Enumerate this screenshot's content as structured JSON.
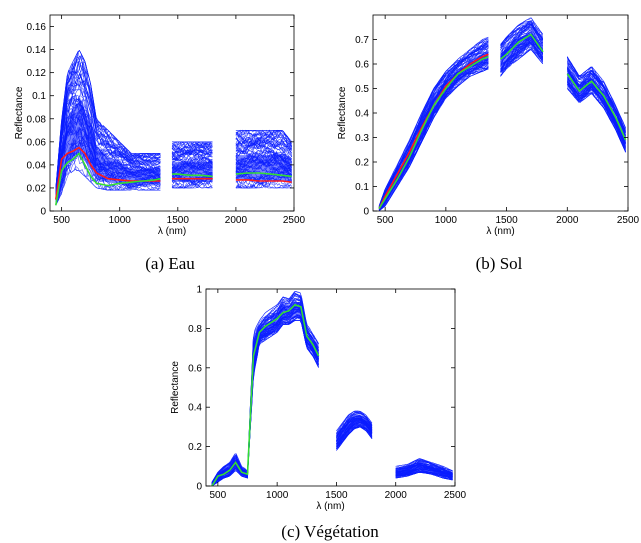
{
  "chart_data": [
    {
      "type": "line",
      "panel": "a",
      "caption": "(a) Eau",
      "xlabel": "λ (nm)",
      "ylabel": "Reflectance",
      "xlim": [
        400,
        2500
      ],
      "ylim": [
        0,
        0.17
      ],
      "xticks": [
        500,
        1000,
        1500,
        2000,
        2500
      ],
      "yticks": [
        0,
        0.02,
        0.04,
        0.06,
        0.08,
        0.1,
        0.12,
        0.14,
        0.16
      ],
      "ytick_labels": [
        "0",
        "0.02",
        "0.04",
        "0.06",
        "0.08",
        "0.1",
        "0.12",
        "0.14",
        "0.16"
      ],
      "grid": false,
      "colors": {
        "spectra": "#0a1cff",
        "red": "#ff1a1a",
        "green": "#33dd33",
        "cyan": "#22ddee"
      },
      "segments": [
        [
          450,
          1350
        ],
        [
          1450,
          1800
        ],
        [
          2000,
          2480
        ]
      ],
      "series": [
        {
          "role": "spectra-band",
          "color": "#0a1cff",
          "x": [
            450,
            500,
            550,
            600,
            650,
            700,
            750,
            800,
            900,
            1000,
            1100,
            1200,
            1300,
            1350,
            1450,
            1500,
            1600,
            1700,
            1800,
            2000,
            2100,
            2200,
            2300,
            2400,
            2480
          ],
          "low": [
            0.005,
            0.015,
            0.03,
            0.035,
            0.035,
            0.03,
            0.025,
            0.02,
            0.018,
            0.018,
            0.018,
            0.018,
            0.018,
            0.018,
            0.02,
            0.02,
            0.02,
            0.02,
            0.02,
            0.02,
            0.02,
            0.02,
            0.02,
            0.02,
            0.02
          ],
          "high": [
            0.02,
            0.08,
            0.12,
            0.13,
            0.14,
            0.13,
            0.11,
            0.08,
            0.07,
            0.06,
            0.05,
            0.05,
            0.05,
            0.05,
            0.06,
            0.06,
            0.06,
            0.06,
            0.06,
            0.07,
            0.07,
            0.07,
            0.07,
            0.07,
            0.06
          ]
        },
        {
          "role": "mean-red",
          "color": "#ff1a1a",
          "x": [
            450,
            500,
            550,
            600,
            650,
            700,
            750,
            800,
            900,
            1000,
            1100,
            1200,
            1300,
            1350,
            1450,
            1500,
            1600,
            1700,
            1800,
            2000,
            2100,
            2200,
            2300,
            2400,
            2480
          ],
          "y": [
            0.01,
            0.045,
            0.05,
            0.052,
            0.055,
            0.05,
            0.04,
            0.033,
            0.028,
            0.027,
            0.026,
            0.026,
            0.026,
            0.026,
            0.028,
            0.028,
            0.028,
            0.028,
            0.028,
            0.027,
            0.027,
            0.026,
            0.026,
            0.026,
            0.025
          ]
        },
        {
          "role": "mean-green",
          "color": "#33dd33",
          "x": [
            450,
            500,
            550,
            600,
            650,
            700,
            750,
            800,
            900,
            1000,
            1100,
            1200,
            1300,
            1350,
            1450,
            1500,
            1600,
            1700,
            1800,
            2000,
            2100,
            2200,
            2300,
            2400,
            2480
          ],
          "y": [
            0.005,
            0.035,
            0.042,
            0.045,
            0.05,
            0.04,
            0.03,
            0.024,
            0.022,
            0.024,
            0.025,
            0.026,
            0.027,
            0.028,
            0.032,
            0.032,
            0.031,
            0.031,
            0.03,
            0.032,
            0.033,
            0.033,
            0.032,
            0.031,
            0.03
          ]
        }
      ]
    },
    {
      "type": "line",
      "panel": "b",
      "caption": "(b) Sol",
      "xlabel": "λ (nm)",
      "ylabel": "Reflectance",
      "xlim": [
        400,
        2500
      ],
      "ylim": [
        0,
        0.8
      ],
      "xticks": [
        500,
        1000,
        1500,
        2000,
        2500
      ],
      "yticks": [
        0,
        0.1,
        0.2,
        0.3,
        0.4,
        0.5,
        0.6,
        0.7
      ],
      "ytick_labels": [
        "0",
        "0.1",
        "0.2",
        "0.3",
        "0.4",
        "0.5",
        "0.6",
        "0.7"
      ],
      "grid": false,
      "colors": {
        "spectra": "#0a1cff",
        "red": "#ff1a1a",
        "green": "#33dd33"
      },
      "segments": [
        [
          450,
          1350
        ],
        [
          1450,
          1800
        ],
        [
          2000,
          2480
        ]
      ],
      "series": [
        {
          "role": "spectra-band",
          "color": "#0a1cff",
          "x": [
            450,
            500,
            600,
            700,
            800,
            900,
            1000,
            1100,
            1200,
            1300,
            1350,
            1450,
            1500,
            1600,
            1700,
            1800,
            2000,
            2100,
            2200,
            2300,
            2400,
            2480
          ],
          "low": [
            0.0,
            0.02,
            0.1,
            0.18,
            0.28,
            0.38,
            0.46,
            0.51,
            0.55,
            0.57,
            0.58,
            0.55,
            0.58,
            0.62,
            0.66,
            0.6,
            0.5,
            0.44,
            0.48,
            0.42,
            0.33,
            0.24
          ],
          "high": [
            0.02,
            0.09,
            0.19,
            0.29,
            0.4,
            0.5,
            0.57,
            0.62,
            0.66,
            0.7,
            0.71,
            0.68,
            0.71,
            0.76,
            0.79,
            0.72,
            0.63,
            0.55,
            0.59,
            0.53,
            0.43,
            0.34
          ]
        },
        {
          "role": "mean-red",
          "color": "#ff1a1a",
          "x": [
            450,
            500,
            600,
            700,
            800,
            900,
            1000,
            1100,
            1200,
            1300,
            1350
          ],
          "y": [
            0.01,
            0.06,
            0.15,
            0.24,
            0.34,
            0.43,
            0.51,
            0.56,
            0.6,
            0.63,
            0.64
          ]
        },
        {
          "role": "mean-green",
          "color": "#33dd33",
          "x": [
            450,
            500,
            600,
            700,
            800,
            900,
            1000,
            1100,
            1200,
            1300,
            1350,
            1450,
            1500,
            1600,
            1700,
            1800,
            2000,
            2100,
            2200,
            2300,
            2400,
            2480
          ],
          "y": [
            0.01,
            0.05,
            0.13,
            0.22,
            0.33,
            0.43,
            0.5,
            0.56,
            0.59,
            0.62,
            0.63,
            0.62,
            0.64,
            0.69,
            0.72,
            0.65,
            0.56,
            0.49,
            0.53,
            0.47,
            0.38,
            0.29
          ]
        }
      ]
    },
    {
      "type": "line",
      "panel": "c",
      "caption": "(c) Végétation",
      "xlabel": "λ (nm)",
      "ylabel": "Reflectance",
      "xlim": [
        400,
        2500
      ],
      "ylim": [
        0,
        1
      ],
      "xticks": [
        500,
        1000,
        1500,
        2000,
        2500
      ],
      "yticks": [
        0,
        0.2,
        0.4,
        0.6,
        0.8,
        1
      ],
      "ytick_labels": [
        "0",
        "0.2",
        "0.4",
        "0.6",
        "0.8",
        "1"
      ],
      "grid": false,
      "colors": {
        "spectra": "#0a1cff",
        "green": "#33dd33"
      },
      "segments": [
        [
          450,
          1350
        ],
        [
          1500,
          1800
        ],
        [
          2000,
          2480
        ]
      ],
      "series": [
        {
          "role": "spectra-band",
          "color": "#0a1cff",
          "x": [
            450,
            500,
            550,
            600,
            650,
            700,
            750,
            800,
            850,
            900,
            950,
            1000,
            1050,
            1100,
            1150,
            1200,
            1250,
            1300,
            1350,
            1500,
            1550,
            1600,
            1650,
            1700,
            1750,
            1800,
            2000,
            2100,
            2200,
            2300,
            2400,
            2480
          ],
          "low": [
            0.0,
            0.02,
            0.04,
            0.05,
            0.08,
            0.05,
            0.04,
            0.55,
            0.72,
            0.74,
            0.76,
            0.78,
            0.82,
            0.82,
            0.84,
            0.84,
            0.7,
            0.66,
            0.6,
            0.18,
            0.22,
            0.26,
            0.29,
            0.3,
            0.28,
            0.24,
            0.04,
            0.05,
            0.07,
            0.06,
            0.04,
            0.03
          ],
          "high": [
            0.02,
            0.07,
            0.1,
            0.12,
            0.17,
            0.1,
            0.08,
            0.78,
            0.84,
            0.88,
            0.9,
            0.92,
            0.96,
            0.95,
            0.99,
            0.98,
            0.82,
            0.78,
            0.73,
            0.28,
            0.32,
            0.36,
            0.38,
            0.38,
            0.36,
            0.32,
            0.1,
            0.11,
            0.14,
            0.12,
            0.1,
            0.08
          ]
        },
        {
          "role": "mean-green",
          "color": "#33dd33",
          "x": [
            450,
            500,
            550,
            600,
            650,
            700,
            750,
            800,
            850,
            900,
            950,
            1000,
            1050,
            1100,
            1150,
            1200,
            1250,
            1300,
            1350
          ],
          "y": [
            0.0,
            0.05,
            0.06,
            0.08,
            0.12,
            0.07,
            0.06,
            0.66,
            0.78,
            0.81,
            0.83,
            0.85,
            0.88,
            0.89,
            0.92,
            0.91,
            0.76,
            0.72,
            0.66
          ]
        }
      ]
    }
  ]
}
